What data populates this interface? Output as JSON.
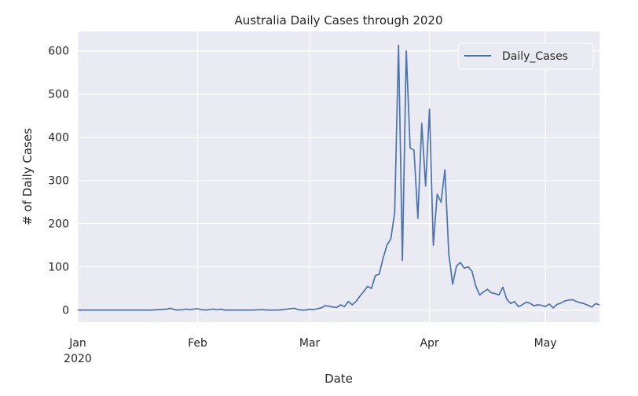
{
  "chart_data": {
    "type": "line",
    "title": "Australia Daily Cases through 2020",
    "xlabel": "Date",
    "ylabel": "# of Daily Cases",
    "x_ticks": [
      {
        "date": "2020-01-01",
        "label": "Jan",
        "sublabel": "2020"
      },
      {
        "date": "2020-02-01",
        "label": "Feb",
        "sublabel": ""
      },
      {
        "date": "2020-03-01",
        "label": "Mar",
        "sublabel": ""
      },
      {
        "date": "2020-04-01",
        "label": "Apr",
        "sublabel": ""
      },
      {
        "date": "2020-05-01",
        "label": "May",
        "sublabel": ""
      }
    ],
    "xlim": [
      "2020-01-01",
      "2020-05-15"
    ],
    "y_ticks": [
      0,
      100,
      200,
      300,
      400,
      500,
      600
    ],
    "ylim": [
      -28,
      645
    ],
    "grid": true,
    "legend": "top-right",
    "series": [
      {
        "name": "Daily_Cases",
        "color": "#4c72b0",
        "points": [
          [
            "2020-01-01",
            0
          ],
          [
            "2020-01-10",
            0
          ],
          [
            "2020-01-20",
            0
          ],
          [
            "2020-01-24",
            2
          ],
          [
            "2020-01-25",
            4
          ],
          [
            "2020-01-26",
            1
          ],
          [
            "2020-01-27",
            0
          ],
          [
            "2020-01-28",
            1
          ],
          [
            "2020-01-29",
            2
          ],
          [
            "2020-01-30",
            1
          ],
          [
            "2020-01-31",
            2
          ],
          [
            "2020-02-01",
            3
          ],
          [
            "2020-02-02",
            1
          ],
          [
            "2020-02-03",
            0
          ],
          [
            "2020-02-04",
            1
          ],
          [
            "2020-02-05",
            2
          ],
          [
            "2020-02-06",
            1
          ],
          [
            "2020-02-07",
            2
          ],
          [
            "2020-02-08",
            0
          ],
          [
            "2020-02-10",
            0
          ],
          [
            "2020-02-15",
            0
          ],
          [
            "2020-02-18",
            1
          ],
          [
            "2020-02-19",
            0
          ],
          [
            "2020-02-22",
            0
          ],
          [
            "2020-02-25",
            3
          ],
          [
            "2020-02-26",
            4
          ],
          [
            "2020-02-27",
            1
          ],
          [
            "2020-02-28",
            0
          ],
          [
            "2020-02-29",
            0
          ],
          [
            "2020-03-01",
            2
          ],
          [
            "2020-03-02",
            1
          ],
          [
            "2020-03-03",
            3
          ],
          [
            "2020-03-04",
            5
          ],
          [
            "2020-03-05",
            10
          ],
          [
            "2020-03-06",
            9
          ],
          [
            "2020-03-07",
            7
          ],
          [
            "2020-03-08",
            6
          ],
          [
            "2020-03-09",
            12
          ],
          [
            "2020-03-10",
            8
          ],
          [
            "2020-03-11",
            20
          ],
          [
            "2020-03-12",
            12
          ],
          [
            "2020-03-13",
            20
          ],
          [
            "2020-03-14",
            32
          ],
          [
            "2020-03-15",
            43
          ],
          [
            "2020-03-16",
            55
          ],
          [
            "2020-03-17",
            50
          ],
          [
            "2020-03-18",
            80
          ],
          [
            "2020-03-19",
            83
          ],
          [
            "2020-03-20",
            120
          ],
          [
            "2020-03-21",
            150
          ],
          [
            "2020-03-22",
            165
          ],
          [
            "2020-03-23",
            225
          ],
          [
            "2020-03-24",
            613
          ],
          [
            "2020-03-25",
            115
          ],
          [
            "2020-03-26",
            600
          ],
          [
            "2020-03-27",
            375
          ],
          [
            "2020-03-28",
            370
          ],
          [
            "2020-03-29",
            212
          ],
          [
            "2020-03-30",
            432
          ],
          [
            "2020-03-31",
            287
          ],
          [
            "2020-04-01",
            465
          ],
          [
            "2020-04-02",
            150
          ],
          [
            "2020-04-03",
            268
          ],
          [
            "2020-04-04",
            250
          ],
          [
            "2020-04-05",
            325
          ],
          [
            "2020-04-06",
            130
          ],
          [
            "2020-04-07",
            60
          ],
          [
            "2020-04-08",
            102
          ],
          [
            "2020-04-09",
            110
          ],
          [
            "2020-04-10",
            97
          ],
          [
            "2020-04-11",
            100
          ],
          [
            "2020-04-12",
            90
          ],
          [
            "2020-04-13",
            55
          ],
          [
            "2020-04-14",
            35
          ],
          [
            "2020-04-15",
            42
          ],
          [
            "2020-04-16",
            48
          ],
          [
            "2020-04-17",
            40
          ],
          [
            "2020-04-18",
            38
          ],
          [
            "2020-04-19",
            35
          ],
          [
            "2020-04-20",
            53
          ],
          [
            "2020-04-21",
            25
          ],
          [
            "2020-04-22",
            15
          ],
          [
            "2020-04-23",
            20
          ],
          [
            "2020-04-24",
            8
          ],
          [
            "2020-04-25",
            12
          ],
          [
            "2020-04-26",
            18
          ],
          [
            "2020-04-27",
            16
          ],
          [
            "2020-04-28",
            10
          ],
          [
            "2020-04-29",
            12
          ],
          [
            "2020-04-30",
            11
          ],
          [
            "2020-05-01",
            8
          ],
          [
            "2020-05-02",
            14
          ],
          [
            "2020-05-03",
            5
          ],
          [
            "2020-05-04",
            13
          ],
          [
            "2020-05-05",
            16
          ],
          [
            "2020-05-06",
            21
          ],
          [
            "2020-05-07",
            23
          ],
          [
            "2020-05-08",
            24
          ],
          [
            "2020-05-09",
            20
          ],
          [
            "2020-05-10",
            17
          ],
          [
            "2020-05-11",
            15
          ],
          [
            "2020-05-12",
            11
          ],
          [
            "2020-05-13",
            7
          ],
          [
            "2020-05-14",
            15
          ],
          [
            "2020-05-15",
            12
          ]
        ]
      }
    ]
  }
}
